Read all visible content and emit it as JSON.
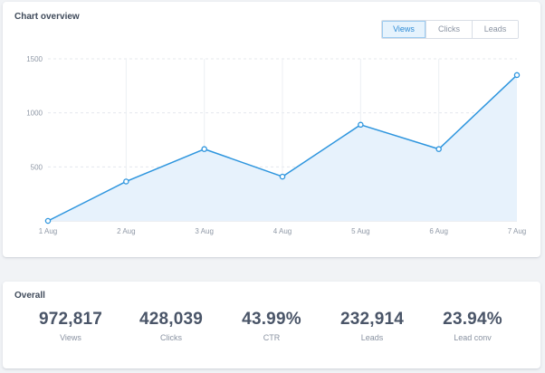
{
  "chart_card": {
    "title": "Chart overview",
    "tabs": [
      {
        "label": "Views",
        "active": true
      },
      {
        "label": "Clicks",
        "active": false
      },
      {
        "label": "Leads",
        "active": false
      }
    ]
  },
  "chart_data": {
    "type": "area",
    "categories": [
      "1 Aug",
      "2 Aug",
      "3 Aug",
      "4 Aug",
      "5 Aug",
      "6 Aug",
      "7 Aug"
    ],
    "series": [
      {
        "values": [
          0,
          365,
          665,
          410,
          890,
          665,
          1350
        ]
      }
    ],
    "yticks": [
      500,
      1000,
      1500
    ],
    "ylim": [
      0,
      1500
    ],
    "grid": true,
    "line_color": "#2d95de",
    "fill_color": "#e7f2fc"
  },
  "overall_card": {
    "title": "Overall",
    "stats": [
      {
        "value": "972,817",
        "label": "Views"
      },
      {
        "value": "428,039",
        "label": "Clicks"
      },
      {
        "value": "43.99%",
        "label": "CTR"
      },
      {
        "value": "232,914",
        "label": "Leads"
      },
      {
        "value": "23.94%",
        "label": "Lead conv"
      }
    ]
  }
}
